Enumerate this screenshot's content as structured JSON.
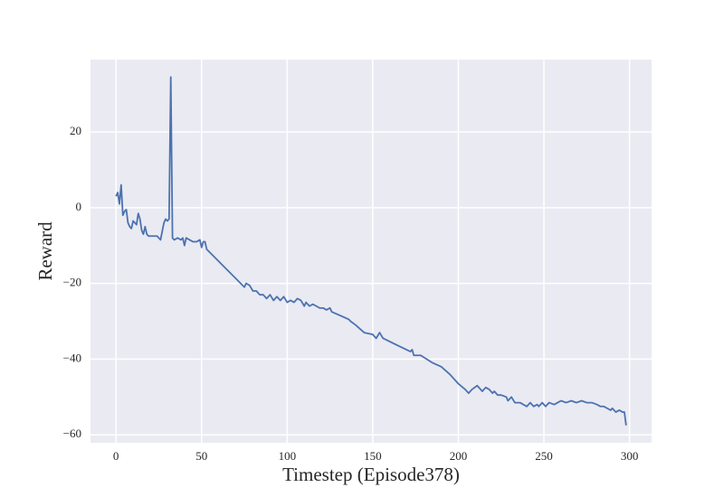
{
  "chart_data": {
    "type": "line",
    "x_label": "Timestep (Episode378)",
    "y_label": "Reward",
    "color": "#4c72b0",
    "background": "#eaeaf2",
    "grid": true,
    "xlim": [
      -14.9,
      312.9
    ],
    "ylim": [
      -62.1,
      39.1
    ],
    "xticks": [
      0,
      50,
      100,
      150,
      200,
      250,
      300
    ],
    "yticks": [
      {
        "value": -60,
        "label": "−60"
      },
      {
        "value": -40,
        "label": "−40"
      },
      {
        "value": -20,
        "label": "−20"
      },
      0,
      20
    ],
    "x": [
      0,
      1,
      2,
      3,
      4,
      5,
      6,
      7,
      8,
      9,
      10,
      11,
      12,
      13,
      14,
      15,
      16,
      17,
      18,
      19,
      20,
      22,
      24,
      26,
      28,
      29,
      30,
      31,
      32,
      33,
      34,
      36,
      38,
      39,
      40,
      41,
      43,
      45,
      47,
      49,
      50,
      51,
      52,
      53,
      75,
      76,
      78,
      80,
      82,
      84,
      86,
      88,
      90,
      92,
      94,
      96,
      98,
      100,
      102,
      104,
      106,
      108,
      110,
      111,
      113,
      115,
      117,
      119,
      121,
      123,
      125,
      126,
      136,
      137,
      140,
      145,
      150,
      152,
      154,
      156,
      165,
      172,
      173,
      174,
      178,
      185,
      190,
      195,
      200,
      204,
      206,
      208,
      211,
      214,
      216,
      218,
      220,
      221,
      223,
      225,
      228,
      229,
      231,
      233,
      236,
      238,
      240,
      242,
      244,
      246,
      247,
      249,
      251,
      253,
      256,
      258,
      260,
      263,
      266,
      269,
      272,
      275,
      278,
      281,
      283,
      285,
      287,
      289,
      290,
      292,
      294,
      296,
      297,
      298
    ],
    "values": [
      3,
      4,
      1,
      6,
      -2,
      -1,
      -0.5,
      -4,
      -5,
      -5.5,
      -3.5,
      -4,
      -4.5,
      -1.5,
      -3,
      -6,
      -7,
      -5,
      -7,
      -7.5,
      -7.5,
      -7.5,
      -7.5,
      -8.5,
      -4,
      -3,
      -3.5,
      -3,
      34.5,
      -8,
      -8.5,
      -8,
      -8.5,
      -8,
      -10,
      -8,
      -8.5,
      -9,
      -9,
      -8.5,
      -10.5,
      -9,
      -9,
      -11,
      -21,
      -20,
      -20.5,
      -22,
      -22,
      -23,
      -23,
      -24,
      -23,
      -24.5,
      -23.5,
      -24.5,
      -23.5,
      -25,
      -24.5,
      -25,
      -24,
      -24.5,
      -26,
      -25,
      -26,
      -25.5,
      -26,
      -26.5,
      -26.5,
      -27,
      -26.5,
      -27.5,
      -29.5,
      -30,
      -31,
      -33,
      -33.5,
      -34.5,
      -33,
      -34.5,
      -36.5,
      -38,
      -37.5,
      -39,
      -39,
      -41,
      -42,
      -44,
      -46.5,
      -48,
      -49,
      -48,
      -47,
      -48.5,
      -47.5,
      -48,
      -49,
      -48.5,
      -49.5,
      -49.5,
      -50,
      -51,
      -50,
      -51.5,
      -51.5,
      -52,
      -52.5,
      -51.5,
      -52.5,
      -52,
      -52.5,
      -51.5,
      -52.5,
      -51.5,
      -52,
      -51.5,
      -51,
      -51.5,
      -51,
      -51.5,
      -51,
      -51.5,
      -51.5,
      -52,
      -52.5,
      -52.5,
      -53,
      -53.5,
      -53,
      -54,
      -53.5,
      -54,
      -54,
      -57.5
    ]
  }
}
